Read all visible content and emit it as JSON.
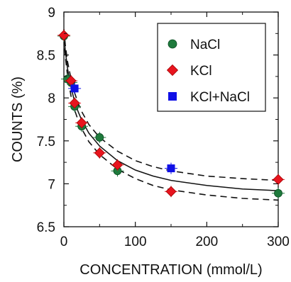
{
  "chart_data": {
    "type": "scatter",
    "xlabel": "CONCENTRATION (mmol/L)",
    "ylabel": "COUNTS (%)",
    "xlim": [
      0,
      300
    ],
    "ylim": [
      6.5,
      9
    ],
    "x_ticks": [
      "0",
      "100",
      "200",
      "300"
    ],
    "y_ticks": [
      "6.5",
      "7",
      "7.5",
      "8",
      "8.5",
      "9"
    ],
    "grid": false,
    "legend_position": "top-right",
    "series": [
      {
        "name": "NaCl",
        "marker": "circle",
        "color": "#1e7a3c",
        "points": [
          {
            "x": 0,
            "y": 8.72
          },
          {
            "x": 5,
            "y": 8.22
          },
          {
            "x": 10,
            "y": 8.18
          },
          {
            "x": 15,
            "y": 7.9
          },
          {
            "x": 25,
            "y": 7.67
          },
          {
            "x": 50,
            "y": 7.54
          },
          {
            "x": 75,
            "y": 7.15
          },
          {
            "x": 300,
            "y": 6.89
          }
        ]
      },
      {
        "name": "KCl",
        "marker": "diamond",
        "color": "#e8141e",
        "points": [
          {
            "x": 0,
            "y": 8.73
          },
          {
            "x": 10,
            "y": 8.2
          },
          {
            "x": 15,
            "y": 7.94
          },
          {
            "x": 25,
            "y": 7.71
          },
          {
            "x": 50,
            "y": 7.36
          },
          {
            "x": 75,
            "y": 7.22
          },
          {
            "x": 150,
            "y": 6.91
          },
          {
            "x": 300,
            "y": 7.05
          }
        ]
      },
      {
        "name": "KCl+NaCl",
        "marker": "square",
        "color": "#1010e6",
        "points": [
          {
            "x": 15,
            "y": 8.11
          },
          {
            "x": 150,
            "y": 7.18
          }
        ]
      }
    ],
    "curves": [
      {
        "style": "solid",
        "points": [
          [
            0,
            8.75
          ],
          [
            2,
            8.55
          ],
          [
            5,
            8.35
          ],
          [
            10,
            8.12
          ],
          [
            15,
            7.96
          ],
          [
            20,
            7.84
          ],
          [
            25,
            7.74
          ],
          [
            35,
            7.59
          ],
          [
            50,
            7.44
          ],
          [
            75,
            7.27
          ],
          [
            100,
            7.16
          ],
          [
            125,
            7.09
          ],
          [
            150,
            7.04
          ],
          [
            200,
            6.98
          ],
          [
            250,
            6.94
          ],
          [
            300,
            6.92
          ]
        ]
      },
      {
        "style": "dashed",
        "points": [
          [
            0,
            8.8
          ],
          [
            2,
            8.62
          ],
          [
            5,
            8.43
          ],
          [
            10,
            8.22
          ],
          [
            15,
            8.06
          ],
          [
            20,
            7.94
          ],
          [
            25,
            7.84
          ],
          [
            35,
            7.69
          ],
          [
            50,
            7.54
          ],
          [
            75,
            7.38
          ],
          [
            100,
            7.27
          ],
          [
            125,
            7.2
          ],
          [
            150,
            7.15
          ],
          [
            200,
            7.09
          ],
          [
            250,
            7.06
          ],
          [
            300,
            7.04
          ]
        ]
      },
      {
        "style": "dashed",
        "points": [
          [
            0,
            8.7
          ],
          [
            2,
            8.48
          ],
          [
            5,
            8.27
          ],
          [
            10,
            8.02
          ],
          [
            15,
            7.86
          ],
          [
            20,
            7.74
          ],
          [
            25,
            7.64
          ],
          [
            35,
            7.49
          ],
          [
            50,
            7.34
          ],
          [
            75,
            7.17
          ],
          [
            100,
            7.06
          ],
          [
            125,
            6.98
          ],
          [
            150,
            6.93
          ],
          [
            200,
            6.87
          ],
          [
            250,
            6.83
          ],
          [
            300,
            6.81
          ]
        ]
      }
    ]
  }
}
